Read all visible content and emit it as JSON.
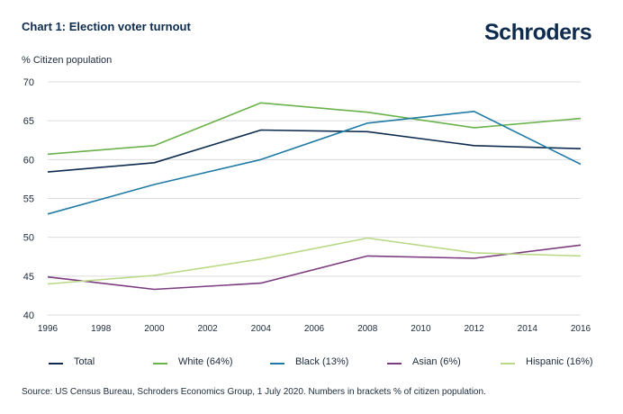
{
  "header": {
    "title": "Chart 1: Election voter turnout",
    "logo": "Schroders"
  },
  "footer": {
    "source": "Source: US Census Bureau, Schroders Economics Group, 1 July 2020. Numbers in brackets % of citizen population."
  },
  "colors": {
    "total": "#0d2b4e",
    "white": "#6ab24a",
    "black": "#1f7aa5",
    "asian": "#7a3b7f",
    "hispanic": "#b9d986",
    "grid": "#dcdcdc"
  },
  "chart_data": {
    "type": "line",
    "title": "Chart 1: Election voter turnout",
    "xlabel": "",
    "ylabel": "% Citizen population",
    "x": [
      1996,
      2000,
      2004,
      2008,
      2012,
      2016
    ],
    "xticks": [
      "1996",
      "1998",
      "2000",
      "2002",
      "2004",
      "2006",
      "2008",
      "2010",
      "2012",
      "2014",
      "2016"
    ],
    "yticks": [
      "40",
      "45",
      "50",
      "55",
      "60",
      "65",
      "70"
    ],
    "ylim": [
      40,
      70
    ],
    "xlim": [
      1996,
      2016
    ],
    "grid": true,
    "legend_position": "bottom",
    "series": [
      {
        "name": "Total",
        "key": "total",
        "values": [
          58.4,
          59.6,
          63.8,
          63.6,
          61.8,
          61.4
        ]
      },
      {
        "name": "White (64%)",
        "key": "white",
        "values": [
          60.7,
          61.8,
          67.3,
          66.1,
          64.1,
          65.3
        ]
      },
      {
        "name": "Black (13%)",
        "key": "black",
        "values": [
          53.0,
          56.8,
          60.0,
          64.7,
          66.2,
          59.4
        ]
      },
      {
        "name": "Asian (6%)",
        "key": "asian",
        "values": [
          44.9,
          43.3,
          44.1,
          47.6,
          47.3,
          49.0
        ]
      },
      {
        "name": "Hispanic (16%)",
        "key": "hispanic",
        "values": [
          44.0,
          45.1,
          47.2,
          49.9,
          48.0,
          47.6
        ]
      }
    ]
  }
}
